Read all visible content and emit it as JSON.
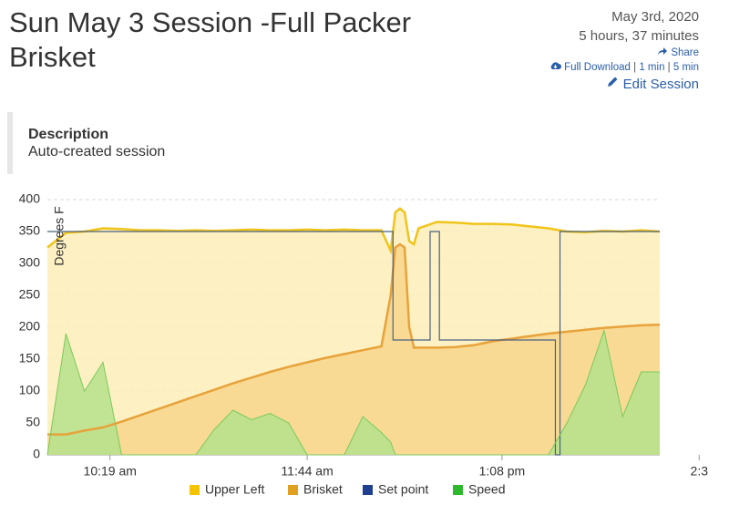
{
  "header": {
    "title": "Sun May 3 Session -Full Packer Brisket",
    "date": "May 3rd, 2020",
    "duration": "5 hours, 37 minutes",
    "share": "Share",
    "download_links": [
      "Full Download",
      "1 min",
      "5 min"
    ],
    "separator": "|",
    "edit_session": "Edit Session"
  },
  "description": {
    "heading": "Description",
    "text": "Auto-created session"
  },
  "chart_data": {
    "type": "area",
    "ylabel": "Degrees F",
    "x": [
      592,
      600,
      608,
      616,
      624,
      632,
      640,
      648,
      656,
      664,
      672,
      680,
      688,
      696,
      704,
      712,
      720,
      728,
      736,
      740,
      742,
      744,
      746,
      748,
      750,
      752,
      760,
      768,
      776,
      784,
      792,
      800,
      808,
      816,
      824,
      832,
      840,
      848,
      856
    ],
    "xlim": [
      592,
      856
    ],
    "xticks": [
      {
        "value": 619,
        "label": "10:19 am"
      },
      {
        "value": 704,
        "label": "11:44 am"
      },
      {
        "value": 788,
        "label": "1:08 pm"
      },
      {
        "value": 873,
        "label": "2:3"
      }
    ],
    "ylim": [
      0,
      400
    ],
    "yticks": [
      0,
      50,
      100,
      150,
      200,
      250,
      300,
      350,
      400
    ],
    "grid": true,
    "legend": "bottom",
    "series": [
      {
        "name": "Upper Left",
        "color": "#f5c400",
        "line": "#f0c419",
        "fill": "#fdefb8",
        "values": [
          325,
          348,
          350,
          355,
          354,
          352,
          352,
          351,
          352,
          351,
          352,
          353,
          352,
          352,
          353,
          352,
          353,
          352,
          352,
          320,
          380,
          386,
          380,
          335,
          330,
          355,
          365,
          364,
          362,
          362,
          361,
          358,
          355,
          350,
          349,
          351,
          350,
          352,
          350
        ]
      },
      {
        "name": "Brisket",
        "color": "#e0a020",
        "line": "#e8a23a",
        "fill": "#f7d68c",
        "values": [
          32,
          32,
          38,
          43,
          52,
          62,
          72,
          82,
          92,
          102,
          112,
          121,
          130,
          138,
          145,
          152,
          158,
          164,
          170,
          250,
          325,
          330,
          325,
          200,
          168,
          168,
          168,
          169,
          172,
          178,
          182,
          186,
          190,
          193,
          196,
          199,
          201,
          203,
          204
        ]
      },
      {
        "name": "Set point",
        "color": "#1f3f8f",
        "line": "#4a6080",
        "x": [
          592,
          741,
          741,
          757,
          757,
          761,
          761,
          811,
          811,
          813,
          813,
          856
        ],
        "values": [
          350,
          350,
          180,
          180,
          350,
          350,
          180,
          180,
          0,
          0,
          350,
          350
        ]
      },
      {
        "name": "Speed",
        "color": "#2db82d",
        "line": "#7bc95a",
        "fill": "#b5e08c",
        "values": [
          0,
          190,
          100,
          145,
          0,
          0,
          0,
          0,
          0,
          40,
          70,
          55,
          65,
          50,
          0,
          0,
          0,
          60,
          35,
          20,
          0,
          0,
          0,
          0,
          0,
          0,
          0,
          0,
          0,
          0,
          0,
          0,
          0,
          50,
          110,
          195,
          60,
          130,
          130
        ]
      }
    ]
  }
}
